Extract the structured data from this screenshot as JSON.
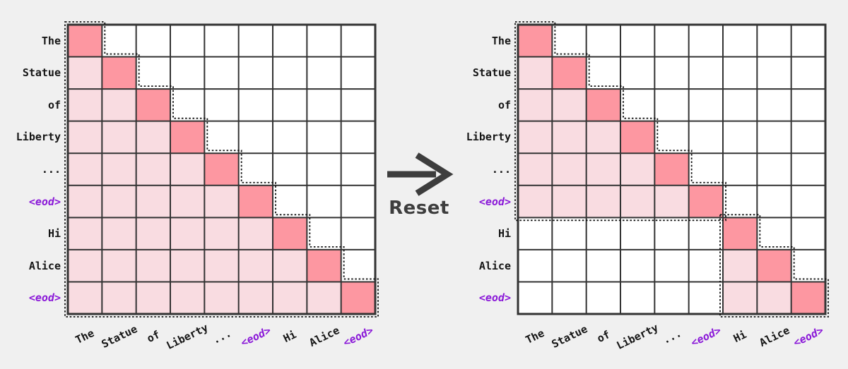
{
  "figure": {
    "background": "#f0f0f0",
    "description": "attention-mask-reset-comparison"
  },
  "colors": {
    "diag_cell": "#fd97a1",
    "attended_cell": "#f9dce1",
    "empty_cell": "#ffffff",
    "grid_line": "#333333",
    "dotted_outline": "#111111",
    "token_text": "#151515",
    "eod_text": "#8a18d8",
    "arrow": "#3d3d3d"
  },
  "tokens": [
    {
      "label": "The",
      "is_eod": false
    },
    {
      "label": "Statue",
      "is_eod": false
    },
    {
      "label": "of",
      "is_eod": false
    },
    {
      "label": "Liberty",
      "is_eod": false
    },
    {
      "label": "...",
      "is_eod": false
    },
    {
      "label": "<eod>",
      "is_eod": true
    },
    {
      "label": "Hi",
      "is_eod": false
    },
    {
      "label": "Alice",
      "is_eod": false
    },
    {
      "label": "<eod>",
      "is_eod": true
    }
  ],
  "arrow": {
    "label": "Reset"
  },
  "matrices": [
    {
      "id": "left",
      "name": "causal-attention-mask",
      "size": 9,
      "blocks": [
        {
          "row_start": 0,
          "row_end": 8,
          "col_start": 0,
          "col_end": 8
        }
      ]
    },
    {
      "id": "right",
      "name": "document-reset-attention-mask",
      "size": 9,
      "blocks": [
        {
          "row_start": 0,
          "row_end": 5,
          "col_start": 0,
          "col_end": 5
        },
        {
          "row_start": 6,
          "row_end": 8,
          "col_start": 6,
          "col_end": 8
        }
      ]
    }
  ]
}
